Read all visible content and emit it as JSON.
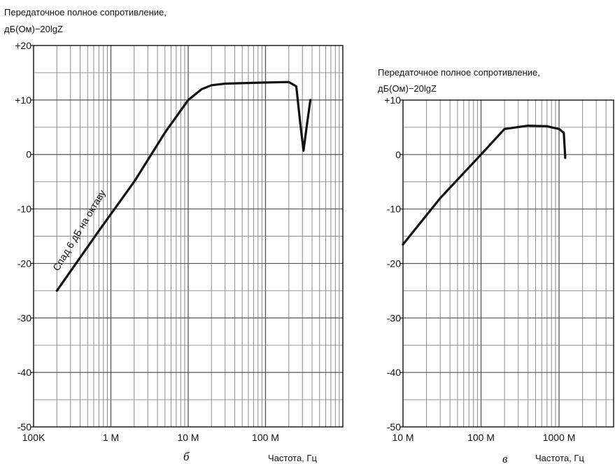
{
  "chart_data": [
    {
      "type": "line",
      "panel_label": "б",
      "ylabel": [
        "Передаточное полное сопротивление,",
        "дБ(Ом)−20lgZ"
      ],
      "xlabel": "Частота, Гц",
      "x_scale": "log",
      "xlim": [
        100000,
        1000000000
      ],
      "ylim": [
        -50,
        20
      ],
      "grid": true,
      "x_ticks": [
        {
          "value": 100000,
          "label": "100K"
        },
        {
          "value": 1000000,
          "label": "1 M"
        },
        {
          "value": 10000000,
          "label": "10 M"
        },
        {
          "value": 100000000,
          "label": "100 M"
        }
      ],
      "y_ticks": [
        {
          "value": 20,
          "label": "+20"
        },
        {
          "value": 10,
          "label": "+10"
        },
        {
          "value": 0,
          "label": "0"
        },
        {
          "value": -10,
          "label": "-10"
        },
        {
          "value": -20,
          "label": "-20"
        },
        {
          "value": -30,
          "label": "-30"
        },
        {
          "value": -40,
          "label": "-40"
        },
        {
          "value": -50,
          "label": "-50"
        }
      ],
      "annotation": {
        "text": "Спад 6 дБ на октаву",
        "x": 500000,
        "y": -15
      },
      "series": [
        {
          "x": [
            200000,
            700000,
            2000000,
            5000000,
            10000000,
            15000000,
            20000000,
            30000000,
            100000000,
            200000000,
            250000000,
            280000000,
            310000000,
            340000000,
            380000000
          ],
          "y": [
            -25,
            -14,
            -5,
            4,
            10,
            12,
            12.7,
            13,
            13.2,
            13.3,
            12.5,
            6,
            0.7,
            5,
            10
          ]
        }
      ]
    },
    {
      "type": "line",
      "panel_label": "в",
      "ylabel": [
        "Передаточное полное сопротивление,",
        "дБ(Ом)−20lgZ"
      ],
      "xlabel": "Частота, Гц",
      "x_scale": "log",
      "xlim": [
        10000000,
        5000000000
      ],
      "ylim": [
        -50,
        10
      ],
      "grid": true,
      "x_ticks": [
        {
          "value": 10000000,
          "label": "10 M"
        },
        {
          "value": 100000000,
          "label": "100 M"
        },
        {
          "value": 1000000000,
          "label": "1000 M"
        }
      ],
      "y_ticks": [
        {
          "value": 10,
          "label": "+10"
        },
        {
          "value": 0,
          "label": "0"
        },
        {
          "value": -10,
          "label": "-10"
        },
        {
          "value": -20,
          "label": "-20"
        },
        {
          "value": -30,
          "label": "-30"
        },
        {
          "value": -40,
          "label": "-40"
        },
        {
          "value": -50,
          "label": "-50"
        }
      ],
      "series": [
        {
          "x": [
            10000000,
            30000000,
            100000000,
            200000000,
            400000000,
            700000000,
            1000000000,
            1150000000,
            1200000000
          ],
          "y": [
            -16.5,
            -8,
            0,
            4.7,
            5.3,
            5.2,
            4.7,
            4,
            -0.6
          ]
        }
      ]
    }
  ]
}
